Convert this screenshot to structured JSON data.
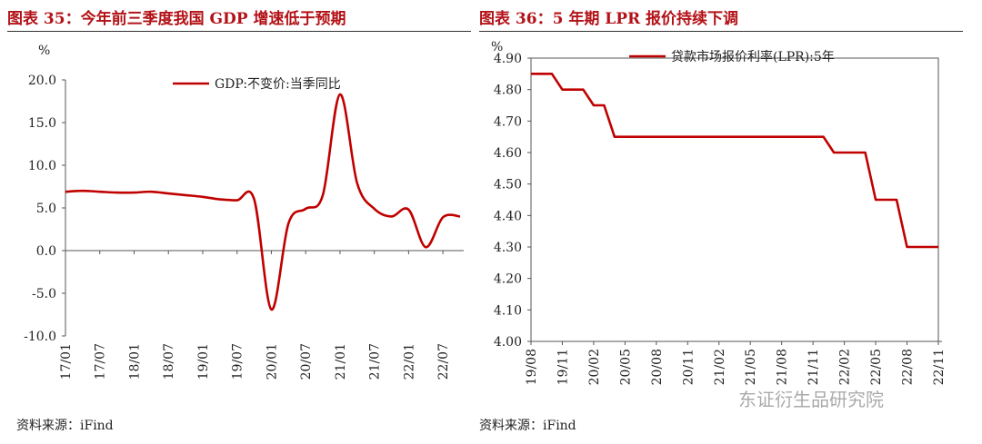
{
  "panels": [
    {
      "title": "图表 35：今年前三季度我国 GDP 增速低于预期",
      "source": "资料来源：iFind"
    },
    {
      "title": "图表 36：5 年期 LPR 报价持续下调",
      "source": "资料来源：iFind"
    }
  ],
  "watermark": "东证衍生品研究院",
  "chart_data": [
    {
      "type": "line",
      "ylabel": "%",
      "ylim": [
        -10,
        20
      ],
      "yticks": [
        "20.0",
        "15.0",
        "10.0",
        "5.0",
        "0.0",
        "-5.0",
        "-10.0"
      ],
      "xticks": [
        "17/01",
        "17/07",
        "18/01",
        "18/07",
        "19/01",
        "19/07",
        "20/01",
        "20/07",
        "21/01",
        "21/07",
        "22/01",
        "22/07"
      ],
      "legend_position": "top-center",
      "series": [
        {
          "name": "GDP:不变价:当季同比",
          "color": "#c00000",
          "x": [
            "17/01",
            "17/04",
            "17/07",
            "17/10",
            "18/01",
            "18/04",
            "18/07",
            "18/10",
            "19/01",
            "19/04",
            "19/07",
            "19/10",
            "20/01",
            "20/04",
            "20/07",
            "20/10",
            "21/01",
            "21/04",
            "21/07",
            "21/10",
            "22/01",
            "22/04",
            "22/07",
            "22/10"
          ],
          "values": [
            6.9,
            7.0,
            6.9,
            6.8,
            6.8,
            6.9,
            6.7,
            6.5,
            6.3,
            6.0,
            5.9,
            6.0,
            -6.9,
            3.2,
            4.9,
            6.5,
            18.3,
            7.9,
            4.9,
            4.0,
            4.8,
            0.4,
            3.9,
            4.0
          ]
        }
      ]
    },
    {
      "type": "line",
      "ylabel": "%",
      "ylim": [
        4.0,
        4.9
      ],
      "yticks": [
        "4.90",
        "4.80",
        "4.70",
        "4.60",
        "4.50",
        "4.40",
        "4.30",
        "4.20",
        "4.10",
        "4.00"
      ],
      "xticks": [
        "19/08",
        "19/11",
        "20/02",
        "20/05",
        "20/08",
        "20/11",
        "21/02",
        "21/05",
        "21/08",
        "21/11",
        "22/02",
        "22/05",
        "22/08",
        "22/11"
      ],
      "legend_position": "top-center",
      "series": [
        {
          "name": "贷款市场报价利率(LPR):5年",
          "color": "#c00000",
          "x": [
            "19/08",
            "19/09",
            "19/10",
            "19/11",
            "19/12",
            "20/01",
            "20/02",
            "20/03",
            "20/04",
            "20/05",
            "20/06",
            "20/07",
            "20/08",
            "20/09",
            "20/10",
            "20/11",
            "20/12",
            "21/01",
            "21/02",
            "21/03",
            "21/04",
            "21/05",
            "21/06",
            "21/07",
            "21/08",
            "21/09",
            "21/10",
            "21/11",
            "21/12",
            "22/01",
            "22/02",
            "22/03",
            "22/04",
            "22/05",
            "22/06",
            "22/07",
            "22/08",
            "22/09",
            "22/10",
            "22/11"
          ],
          "values": [
            4.85,
            4.85,
            4.85,
            4.8,
            4.8,
            4.8,
            4.75,
            4.75,
            4.65,
            4.65,
            4.65,
            4.65,
            4.65,
            4.65,
            4.65,
            4.65,
            4.65,
            4.65,
            4.65,
            4.65,
            4.65,
            4.65,
            4.65,
            4.65,
            4.65,
            4.65,
            4.65,
            4.65,
            4.65,
            4.6,
            4.6,
            4.6,
            4.6,
            4.45,
            4.45,
            4.45,
            4.3,
            4.3,
            4.3,
            4.3
          ]
        }
      ]
    }
  ]
}
